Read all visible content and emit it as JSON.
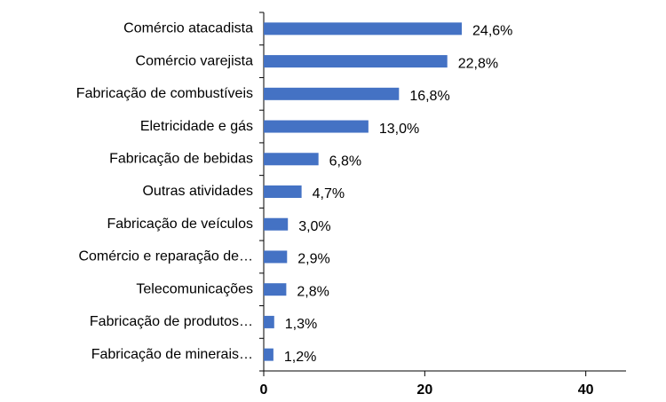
{
  "chart_data": {
    "type": "bar",
    "orientation": "horizontal",
    "categories": [
      "Comércio atacadista",
      "Comércio varejista",
      "Fabricação de combustíveis",
      "Eletricidade e gás",
      "Fabricação de bebidas",
      "Outras atividades",
      "Fabricação de veículos",
      "Comércio e reparação de…",
      "Telecomunicações",
      "Fabricação de produtos…",
      "Fabricação de minerais…"
    ],
    "values": [
      24.6,
      22.8,
      16.8,
      13.0,
      6.8,
      4.7,
      3.0,
      2.9,
      2.8,
      1.3,
      1.2
    ],
    "value_labels": [
      "24,6%",
      "22,8%",
      "16,8%",
      "13,0%",
      "6,8%",
      "4,7%",
      "3,0%",
      "2,9%",
      "2,8%",
      "1,3%",
      "1,2%"
    ],
    "color": "#4472c4",
    "xlim": [
      0,
      45
    ],
    "xticks": [
      0,
      20,
      40
    ],
    "grid": false
  }
}
